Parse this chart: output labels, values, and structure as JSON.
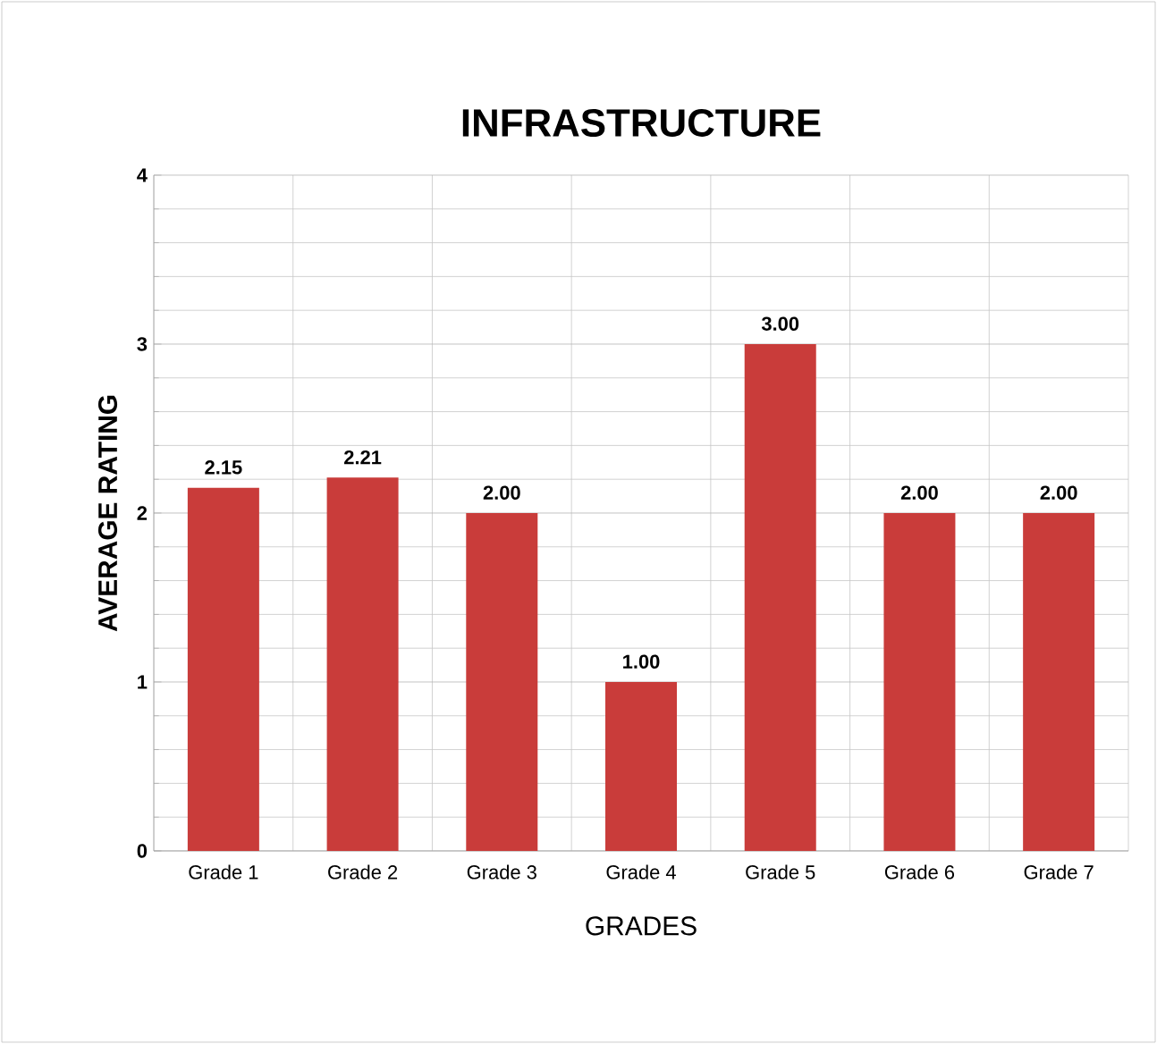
{
  "chart_data": {
    "type": "bar",
    "title": "INFRASTRUCTURE",
    "xlabel": "GRADES",
    "ylabel": "AVERAGE RATING",
    "categories": [
      "Grade 1",
      "Grade 2",
      "Grade 3",
      "Grade 4",
      "Grade 5",
      "Grade 6",
      "Grade 7"
    ],
    "values": [
      2.15,
      2.21,
      2.0,
      1.0,
      3.0,
      2.0,
      2.0
    ],
    "value_labels": [
      "2.15",
      "2.21",
      "2.00",
      "1.00",
      "3.00",
      "2.00",
      "2.00"
    ],
    "color": "#c93c3a",
    "ylim": [
      0,
      4
    ],
    "yticks": [
      0,
      1,
      2,
      3,
      4
    ],
    "grid": true
  }
}
